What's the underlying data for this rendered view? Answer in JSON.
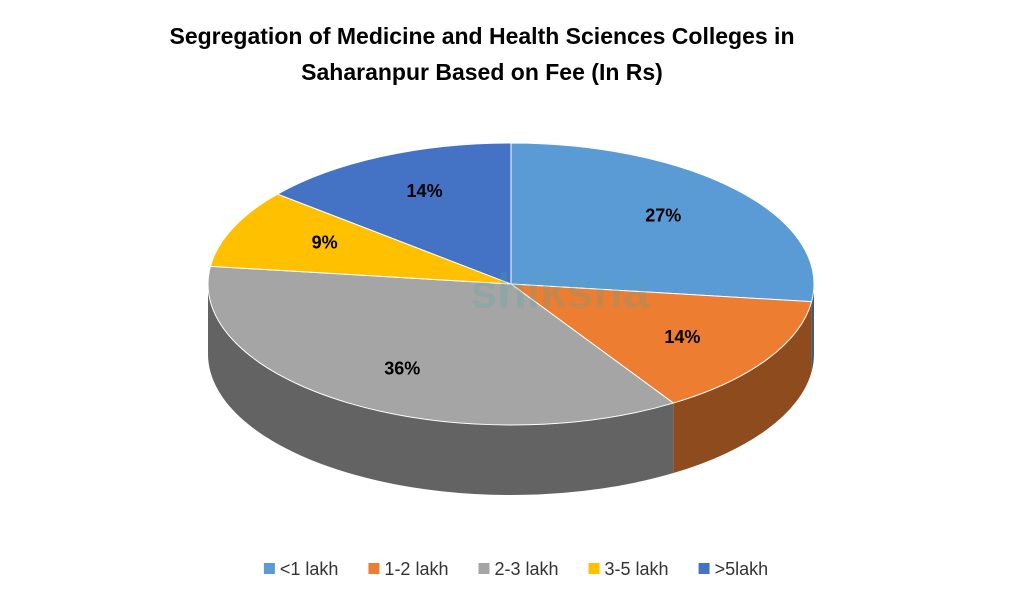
{
  "chart_data": {
    "type": "pie3d",
    "title": [
      "Segregation of Medicine and Health Sciences Colleges in",
      "Saharanpur Based on Fee (In Rs)"
    ],
    "watermark": "shiksha",
    "categories": [
      "<1 lakh",
      "1-2 lakh",
      "2-3 lakh",
      "3-5 lakh",
      ">5lakh"
    ],
    "values": [
      27,
      14,
      36,
      9,
      14
    ],
    "value_labels": [
      "27%",
      "14%",
      "36%",
      "9%",
      "14%"
    ],
    "colors": [
      "#5b9bd5",
      "#ed7d31",
      "#a5a5a5",
      "#ffc000",
      "#4472c4"
    ],
    "legend": "bottom"
  }
}
